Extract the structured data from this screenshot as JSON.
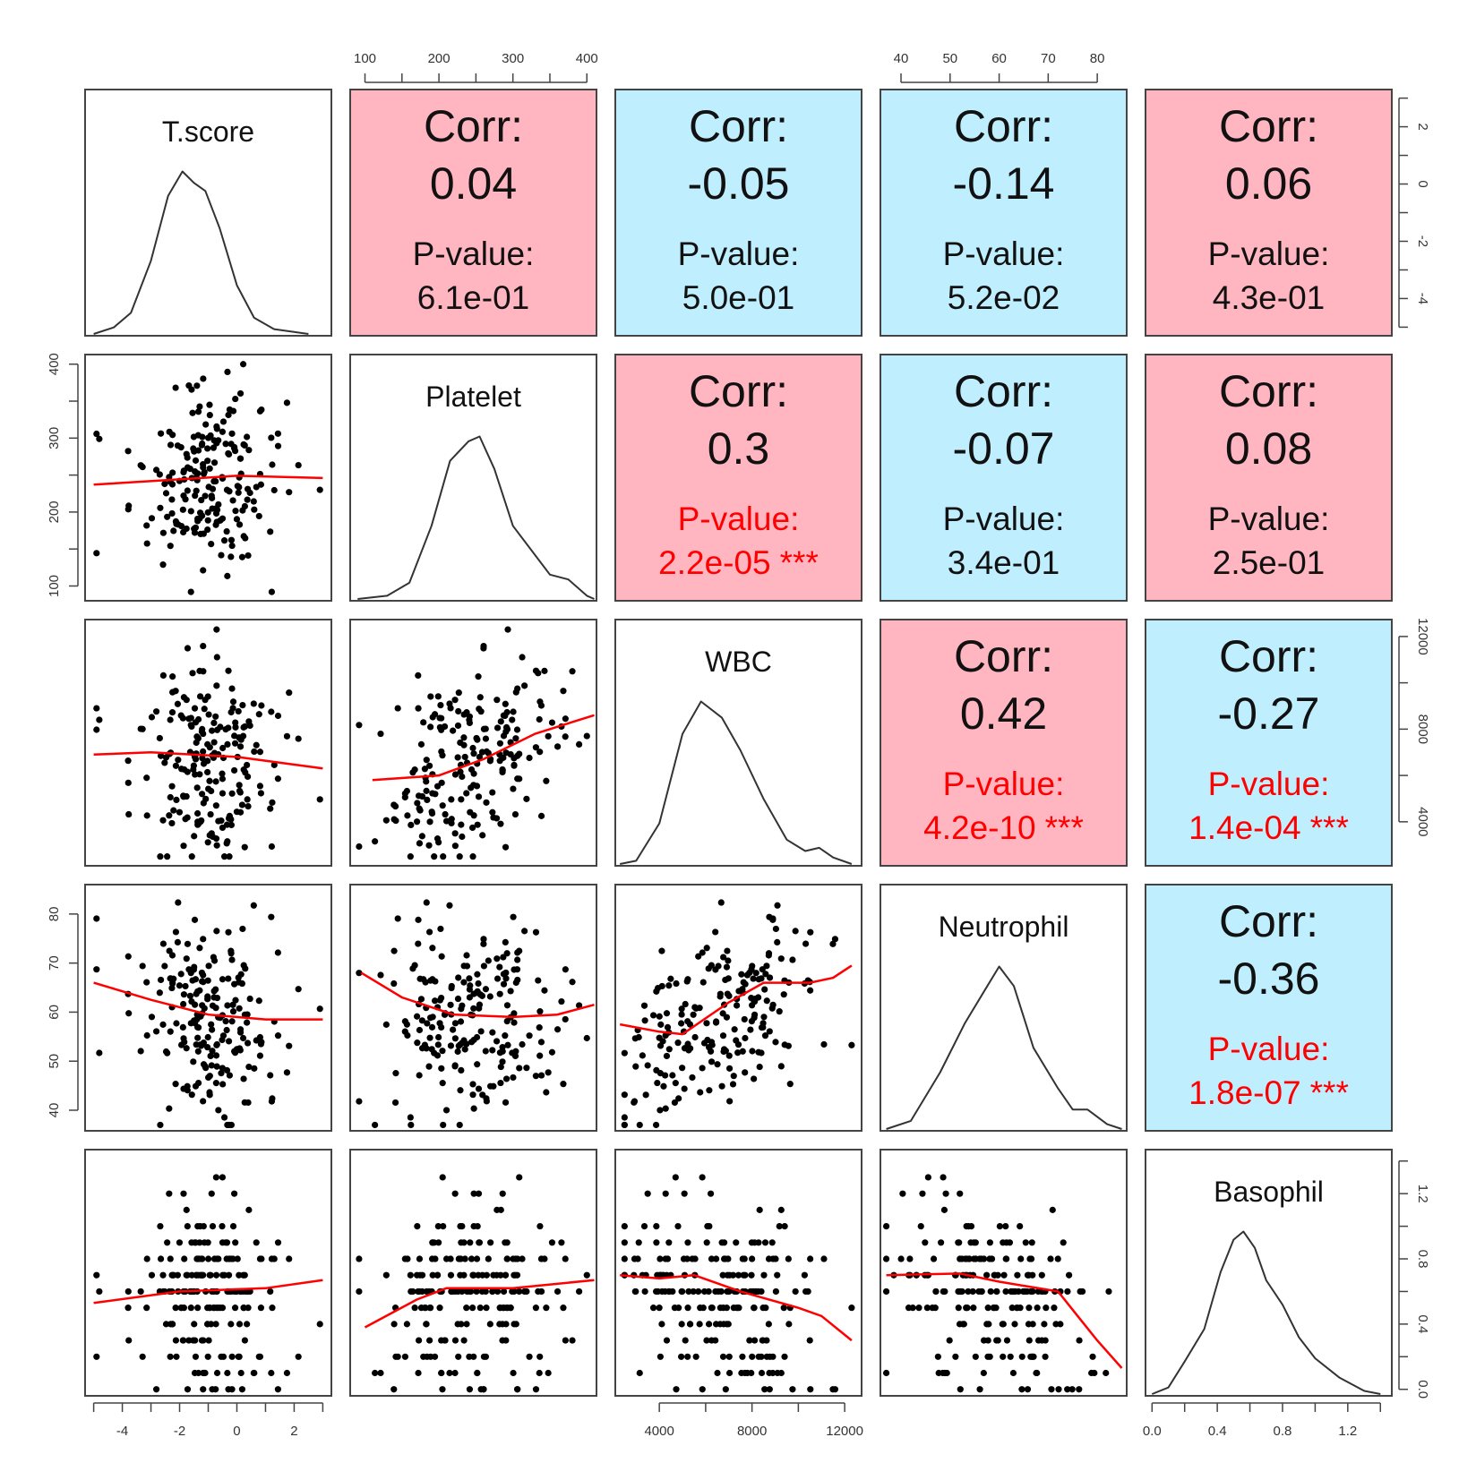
{
  "chart_data": {
    "type": "scatter-matrix",
    "title": "",
    "variables": [
      "T.score",
      "Platelet",
      "WBC",
      "Neutrophil",
      "Basophil"
    ],
    "ranges": [
      [
        -5.3,
        3.3
      ],
      [
        80,
        413
      ],
      [
        2100,
        12730
      ],
      [
        35.8,
        86
      ],
      [
        -0.04,
        1.47
      ]
    ],
    "ticks": [
      {
        "labels": [
          "-4",
          "-2",
          "0",
          "2"
        ],
        "values": [
          -4,
          -2,
          0,
          2
        ],
        "minor": [
          -5,
          -4,
          -3,
          -2,
          -1,
          0,
          1,
          2,
          3
        ]
      },
      {
        "labels": [
          "100",
          "200",
          "300",
          "400"
        ],
        "values": [
          100,
          200,
          300,
          400
        ],
        "minor": [
          100,
          150,
          200,
          250,
          300,
          350,
          400
        ]
      },
      {
        "labels": [
          "4000",
          "8000",
          "12000"
        ],
        "values": [
          4000,
          8000,
          12000
        ],
        "minor": [
          4000,
          6000,
          8000,
          10000,
          12000
        ]
      },
      {
        "labels": [
          "40",
          "50",
          "60",
          "70",
          "80"
        ],
        "values": [
          40,
          50,
          60,
          70,
          80
        ],
        "minor": [
          40,
          50,
          60,
          70,
          80
        ]
      },
      {
        "labels": [
          "0.0",
          "0.4",
          "0.8",
          "1.2"
        ],
        "values": [
          0,
          0.4,
          0.8,
          1.2
        ],
        "minor": [
          0,
          0.2,
          0.4,
          0.6,
          0.8,
          1.0,
          1.2,
          1.4
        ]
      }
    ],
    "corr_label": "Corr:",
    "pvalue_label": "P-value:",
    "upper": [
      {
        "row": 0,
        "col": 1,
        "corr": "0.04",
        "p": "6.1e-01",
        "stars": "",
        "sig": false
      },
      {
        "row": 0,
        "col": 2,
        "corr": "-0.05",
        "p": "5.0e-01",
        "stars": "",
        "sig": false
      },
      {
        "row": 0,
        "col": 3,
        "corr": "-0.14",
        "p": "5.2e-02",
        "stars": "",
        "sig": false
      },
      {
        "row": 0,
        "col": 4,
        "corr": "0.06",
        "p": "4.3e-01",
        "stars": "",
        "sig": false
      },
      {
        "row": 1,
        "col": 2,
        "corr": "0.3",
        "p": "2.2e-05",
        "stars": "***",
        "sig": true
      },
      {
        "row": 1,
        "col": 3,
        "corr": "-0.07",
        "p": "3.4e-01",
        "stars": "",
        "sig": false
      },
      {
        "row": 1,
        "col": 4,
        "corr": "0.08",
        "p": "2.5e-01",
        "stars": "",
        "sig": false
      },
      {
        "row": 2,
        "col": 3,
        "corr": "0.42",
        "p": "4.2e-10",
        "stars": "***",
        "sig": true
      },
      {
        "row": 2,
        "col": 4,
        "corr": "-0.27",
        "p": "1.4e-04",
        "stars": "***",
        "sig": true
      },
      {
        "row": 3,
        "col": 4,
        "corr": "-0.36",
        "p": "1.8e-07",
        "stars": "***",
        "sig": true
      }
    ],
    "density": [
      [
        [
          -5,
          0
        ],
        [
          -4.3,
          0.04
        ],
        [
          -3.7,
          0.13
        ],
        [
          -3,
          0.45
        ],
        [
          -2.4,
          0.85
        ],
        [
          -1.9,
          1
        ],
        [
          -1.5,
          0.93
        ],
        [
          -1.1,
          0.88
        ],
        [
          -0.6,
          0.65
        ],
        [
          0,
          0.3
        ],
        [
          0.6,
          0.1
        ],
        [
          1.3,
          0.03
        ],
        [
          2.5,
          0
        ]
      ],
      [
        [
          90,
          0
        ],
        [
          130,
          0.02
        ],
        [
          160,
          0.1
        ],
        [
          190,
          0.45
        ],
        [
          215,
          0.85
        ],
        [
          240,
          0.97
        ],
        [
          255,
          1
        ],
        [
          275,
          0.8
        ],
        [
          300,
          0.45
        ],
        [
          325,
          0.3
        ],
        [
          350,
          0.15
        ],
        [
          375,
          0.12
        ],
        [
          400,
          0.02
        ],
        [
          410,
          0
        ]
      ],
      [
        [
          2300,
          0
        ],
        [
          3000,
          0.02
        ],
        [
          4000,
          0.25
        ],
        [
          5000,
          0.8
        ],
        [
          5800,
          1
        ],
        [
          6700,
          0.9
        ],
        [
          7500,
          0.7
        ],
        [
          8500,
          0.4
        ],
        [
          9500,
          0.15
        ],
        [
          10300,
          0.08
        ],
        [
          10900,
          0.1
        ],
        [
          11500,
          0.04
        ],
        [
          12300,
          0
        ]
      ],
      [
        [
          37,
          0
        ],
        [
          42,
          0.05
        ],
        [
          48,
          0.35
        ],
        [
          53,
          0.65
        ],
        [
          57,
          0.85
        ],
        [
          60,
          1
        ],
        [
          63,
          0.88
        ],
        [
          67,
          0.5
        ],
        [
          72,
          0.25
        ],
        [
          75,
          0.12
        ],
        [
          78,
          0.12
        ],
        [
          82,
          0.03
        ],
        [
          85,
          0
        ]
      ],
      [
        [
          0,
          0
        ],
        [
          0.1,
          0.04
        ],
        [
          0.2,
          0.2
        ],
        [
          0.32,
          0.4
        ],
        [
          0.42,
          0.75
        ],
        [
          0.5,
          0.95
        ],
        [
          0.56,
          1
        ],
        [
          0.63,
          0.9
        ],
        [
          0.7,
          0.7
        ],
        [
          0.8,
          0.55
        ],
        [
          0.9,
          0.35
        ],
        [
          1.0,
          0.22
        ],
        [
          1.15,
          0.1
        ],
        [
          1.3,
          0.02
        ],
        [
          1.4,
          0
        ]
      ]
    ],
    "loess": [
      {
        "row": 1,
        "col": 0,
        "points": [
          [
            -5,
            237
          ],
          [
            0,
            249
          ],
          [
            3,
            246
          ]
        ]
      },
      {
        "row": 2,
        "col": 0,
        "points": [
          [
            -5,
            6900
          ],
          [
            -3,
            7000
          ],
          [
            0,
            6800
          ],
          [
            3,
            6300
          ]
        ]
      },
      {
        "row": 2,
        "col": 1,
        "points": [
          [
            110,
            5800
          ],
          [
            200,
            6000
          ],
          [
            260,
            6700
          ],
          [
            330,
            7800
          ],
          [
            410,
            8600
          ]
        ]
      },
      {
        "row": 3,
        "col": 0,
        "points": [
          [
            -5,
            66
          ],
          [
            -3,
            62.5
          ],
          [
            -1,
            59.5
          ],
          [
            1,
            58.5
          ],
          [
            3,
            58.5
          ]
        ]
      },
      {
        "row": 3,
        "col": 1,
        "points": [
          [
            95,
            68
          ],
          [
            150,
            63
          ],
          [
            220,
            59.5
          ],
          [
            300,
            59
          ],
          [
            360,
            59.5
          ],
          [
            410,
            61.5
          ]
        ]
      },
      {
        "row": 3,
        "col": 2,
        "points": [
          [
            2300,
            57.5
          ],
          [
            4000,
            56
          ],
          [
            5000,
            55.5
          ],
          [
            7000,
            62
          ],
          [
            8500,
            66
          ],
          [
            10500,
            66
          ],
          [
            11500,
            67
          ],
          [
            12300,
            69.5
          ]
        ]
      },
      {
        "row": 4,
        "col": 0,
        "points": [
          [
            -5,
            0.53
          ],
          [
            -2,
            0.6
          ],
          [
            1,
            0.62
          ],
          [
            3,
            0.67
          ]
        ]
      },
      {
        "row": 4,
        "col": 1,
        "points": [
          [
            100,
            0.38
          ],
          [
            170,
            0.55
          ],
          [
            210,
            0.62
          ],
          [
            300,
            0.62
          ],
          [
            410,
            0.67
          ]
        ]
      },
      {
        "row": 4,
        "col": 2,
        "points": [
          [
            2300,
            0.7
          ],
          [
            4000,
            0.68
          ],
          [
            5500,
            0.7
          ],
          [
            7500,
            0.6
          ],
          [
            10000,
            0.5
          ],
          [
            11000,
            0.45
          ],
          [
            12300,
            0.3
          ]
        ]
      },
      {
        "row": 4,
        "col": 3,
        "points": [
          [
            37,
            0.7
          ],
          [
            52,
            0.71
          ],
          [
            60,
            0.66
          ],
          [
            72,
            0.6
          ],
          [
            76,
            0.45
          ],
          [
            80,
            0.3
          ],
          [
            85,
            0.13
          ]
        ]
      }
    ],
    "axes": {
      "top": [
        1,
        3
      ],
      "bottom": [
        0,
        2,
        4
      ],
      "left": [
        1,
        3
      ],
      "right": [
        0,
        2,
        4
      ]
    },
    "n_points": 200,
    "colors": {
      "positive": "#FFB6C1",
      "negative": "#BFEFFF",
      "significant": "#FF0000",
      "loess": "#FF0000",
      "points": "#000000"
    }
  }
}
